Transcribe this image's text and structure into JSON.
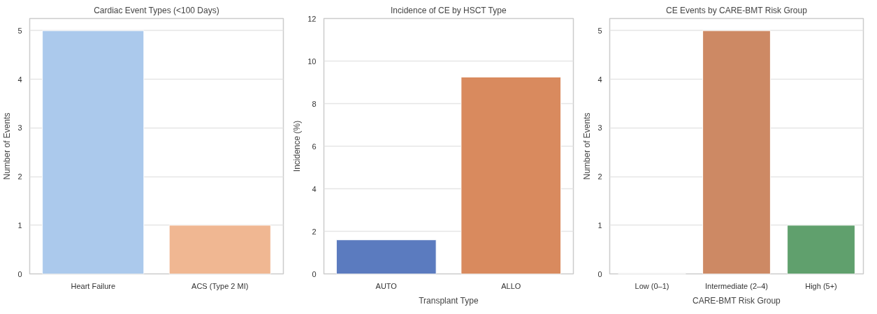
{
  "chart_data": [
    {
      "type": "bar",
      "title": "Cardiac Event Types (<100 Days)",
      "ylabel": "Number of Events",
      "categories": [
        "Heart Failure",
        "ACS (Type 2 MI)"
      ],
      "values": [
        5,
        1
      ],
      "colors": [
        "#abc9ec",
        "#f0b792"
      ],
      "ylim": [
        0,
        5.25
      ],
      "yticks": [
        0,
        1,
        2,
        3,
        4,
        5
      ],
      "grid": "y"
    },
    {
      "type": "bar",
      "title": "Incidence of CE by HSCT Type",
      "xlabel": "Transplant Type",
      "ylabel": "Incidence (%)",
      "categories": [
        "AUTO",
        "ALLO"
      ],
      "values": [
        1.6,
        9.25
      ],
      "colors": [
        "#5b7bbf",
        "#d98a5e"
      ],
      "ylim": [
        0,
        12
      ],
      "yticks": [
        0,
        2,
        4,
        6,
        8,
        10,
        12
      ],
      "grid": "y"
    },
    {
      "type": "bar",
      "title": "CE Events by CARE-BMT Risk Group",
      "xlabel": "CARE-BMT Risk Group",
      "ylabel": "Number of Events",
      "categories": [
        "Low (0–1)",
        "Intermediate (2–4)",
        "High (5+)"
      ],
      "values": [
        0,
        5,
        1
      ],
      "colors": [
        "#5b7bbf",
        "#cd8964",
        "#60a06d"
      ],
      "ylim": [
        0,
        5.25
      ],
      "yticks": [
        0,
        1,
        2,
        3,
        4,
        5
      ],
      "grid": "y"
    }
  ]
}
